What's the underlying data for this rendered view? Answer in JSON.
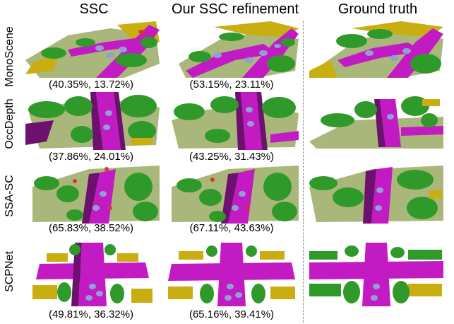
{
  "columns": [
    "SSC",
    "Our SSC refinement",
    "Ground truth"
  ],
  "rows": [
    {
      "method": "MonoScene",
      "ssc_metrics": "(40.35%, 13.72%)",
      "refined_metrics": "(53.15%, 23.11%)"
    },
    {
      "method": "OccDepth",
      "ssc_metrics": "(37.86%, 24.01%)",
      "refined_metrics": "(43.25%, 31.43%)"
    },
    {
      "method": "SSA-SC",
      "ssc_metrics": "(65.83%, 38.52%)",
      "refined_metrics": "(67.11%, 43.63%)"
    },
    {
      "method": "SCPNet",
      "ssc_metrics": "(49.81%, 36.32%)",
      "refined_metrics": "(65.16%, 39.41%)"
    }
  ],
  "colors": {
    "road": "#c21bc4",
    "sidewalk": "#6e1070",
    "terrain": "#a9b87a",
    "vegetation": "#2f9a2a",
    "building": "#c9ae12",
    "car": "#8fa0d6",
    "pole": "#d23c2a"
  }
}
